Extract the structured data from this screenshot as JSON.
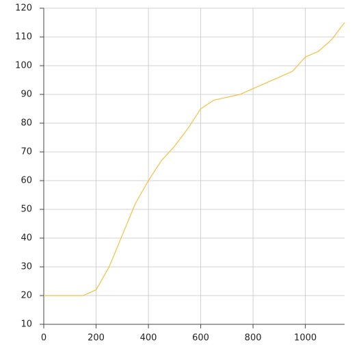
{
  "chart_data": {
    "type": "line",
    "x": [
      0,
      150,
      200,
      250,
      300,
      350,
      400,
      450,
      500,
      550,
      600,
      650,
      700,
      750,
      800,
      850,
      900,
      950,
      1000,
      1050,
      1100,
      1150
    ],
    "series": [
      {
        "color": "#f0c040",
        "values": [
          20,
          20,
          22,
          30,
          41,
          52,
          60,
          67,
          72,
          78,
          85,
          88,
          89,
          90,
          92,
          94,
          96,
          98,
          103,
          105,
          109,
          115
        ]
      }
    ],
    "xlim": [
      0,
      1150
    ],
    "xticks": [
      0,
      200,
      400,
      600,
      800,
      1000
    ],
    "ylim": [
      10,
      120
    ],
    "yticks": [
      10,
      20,
      30,
      40,
      50,
      60,
      70,
      80,
      90,
      100,
      110,
      120
    ],
    "grid": true
  }
}
